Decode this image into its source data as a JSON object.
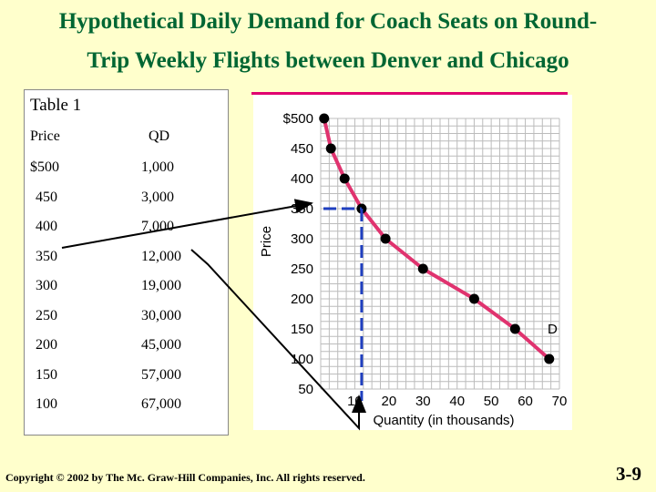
{
  "title_line1": "Hypothetical Daily Demand for Coach Seats on Round-",
  "title_line2": "Trip Weekly Flights between Denver and Chicago",
  "table": {
    "title": "Table 1",
    "headers": [
      "Price",
      "QD"
    ],
    "rows": [
      [
        "$500",
        "1,000"
      ],
      [
        "450",
        "3,000"
      ],
      [
        "400",
        "7,000"
      ],
      [
        "350",
        "12,000"
      ],
      [
        "300",
        "19,000"
      ],
      [
        "250",
        "30,000"
      ],
      [
        "200",
        "45,000"
      ],
      [
        "150",
        "57,000"
      ],
      [
        "100",
        "67,000"
      ]
    ]
  },
  "chart_data": {
    "type": "line",
    "xlabel": "Quantity (in thousands)",
    "ylabel": "Price",
    "x_ticks": [
      "10",
      "20",
      "30",
      "40",
      "50",
      "60",
      "70"
    ],
    "y_ticks": [
      "$500",
      "450",
      "400",
      "350",
      "300",
      "250",
      "200",
      "150",
      "100",
      "50"
    ],
    "xlim": [
      0,
      70
    ],
    "ylim": [
      50,
      500
    ],
    "curve_label": "D",
    "series": [
      {
        "x": [
          1,
          3,
          7,
          12,
          19,
          30,
          45,
          57,
          67
        ],
        "y": [
          500,
          450,
          400,
          350,
          300,
          250,
          200,
          150,
          100
        ]
      }
    ],
    "highlight": {
      "x": 12,
      "y": 350
    },
    "colors": {
      "curve": "#e0336f",
      "points": "#000000",
      "dash": "#1f3fbf",
      "rule": "#e00070"
    }
  },
  "footer": "Copyright © 2002 by The Mc. Graw-Hill Companies, Inc.  All rights reserved.",
  "slide_number": "3-9"
}
